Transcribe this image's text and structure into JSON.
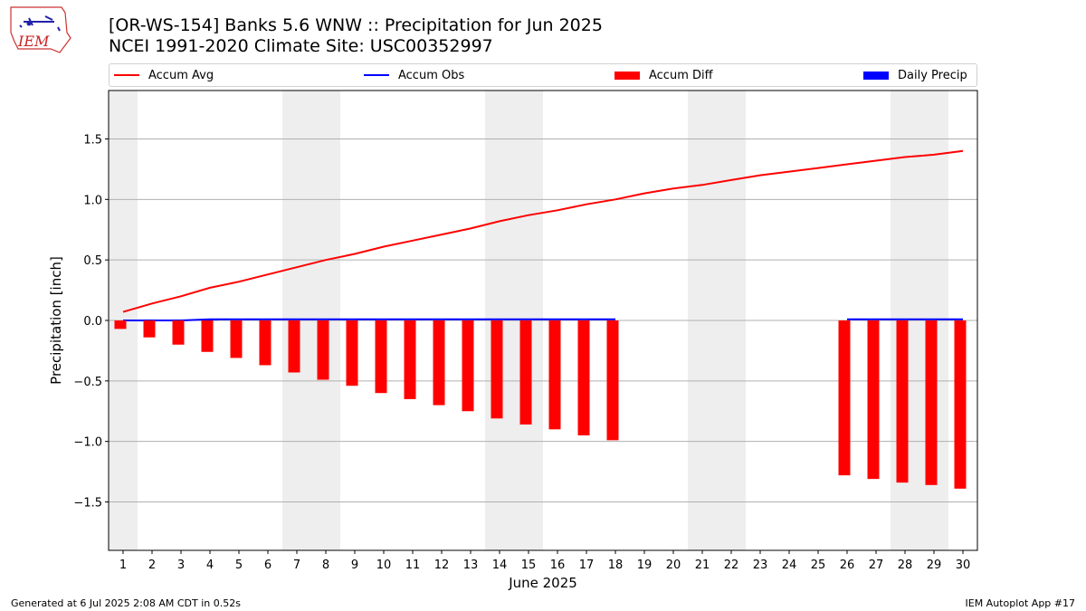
{
  "logo": {
    "text": "IEM"
  },
  "header": {
    "title": "[OR-WS-154] Banks 5.6 WNW :: Precipitation for Jun 2025",
    "subtitle": "NCEI 1991-2020 Climate Site: USC00352997"
  },
  "legend": {
    "items": [
      {
        "label": "Accum Avg",
        "kind": "line",
        "color": "#ff0000"
      },
      {
        "label": "Accum Obs",
        "kind": "line",
        "color": "#0000ff"
      },
      {
        "label": "Accum Diff",
        "kind": "patch",
        "color": "#ff0000"
      },
      {
        "label": "Daily Precip",
        "kind": "patch",
        "color": "#0000ff"
      }
    ]
  },
  "footer": {
    "left": "Generated at 6 Jul 2025 2:08 AM CDT in 0.52s",
    "right": "IEM Autoplot App #17"
  },
  "chart_data": {
    "type": "bar",
    "xlabel": "June 2025",
    "ylabel": "Precipitation [inch]",
    "xlim": [
      0.5,
      30.5
    ],
    "ylim": [
      -1.9,
      1.9
    ],
    "x_ticks": [
      1,
      2,
      3,
      4,
      5,
      6,
      7,
      8,
      9,
      10,
      11,
      12,
      13,
      14,
      15,
      16,
      17,
      18,
      19,
      20,
      21,
      22,
      23,
      24,
      25,
      26,
      27,
      28,
      29,
      30
    ],
    "y_ticks": [
      -1.5,
      -1.0,
      -0.5,
      0.0,
      0.5,
      1.0,
      1.5
    ],
    "y_tick_labels": [
      "−1.5",
      "−1.0",
      "−0.5",
      "0.0",
      "0.5",
      "1.0",
      "1.5"
    ],
    "grid": "y",
    "legend_position": "top",
    "weekend_shading": [
      [
        0.5,
        1.5
      ],
      [
        6.5,
        8.5
      ],
      [
        13.5,
        15.5
      ],
      [
        20.5,
        22.5
      ],
      [
        27.5,
        29.5
      ]
    ],
    "shading_color": "#eeeeee",
    "series": [
      {
        "name": "Accum Avg",
        "type": "line",
        "color": "#ff0000",
        "x": [
          1,
          2,
          3,
          4,
          5,
          6,
          7,
          8,
          9,
          10,
          11,
          12,
          13,
          14,
          15,
          16,
          17,
          18,
          19,
          20,
          21,
          22,
          23,
          24,
          25,
          26,
          27,
          28,
          29,
          30
        ],
        "values": [
          0.07,
          0.14,
          0.2,
          0.27,
          0.32,
          0.38,
          0.44,
          0.5,
          0.55,
          0.61,
          0.66,
          0.71,
          0.76,
          0.82,
          0.87,
          0.91,
          0.96,
          1.0,
          1.05,
          1.09,
          1.12,
          1.16,
          1.2,
          1.23,
          1.26,
          1.29,
          1.32,
          1.35,
          1.37,
          1.4
        ]
      },
      {
        "name": "Accum Obs",
        "type": "line",
        "color": "#0000ff",
        "segments": [
          {
            "x": [
              1,
              2,
              3,
              4,
              5,
              6,
              7,
              8,
              9,
              10,
              11,
              12,
              13,
              14,
              15,
              16,
              17,
              18
            ],
            "values": [
              0,
              0,
              0,
              0.01,
              0.01,
              0.01,
              0.01,
              0.01,
              0.01,
              0.01,
              0.01,
              0.01,
              0.01,
              0.01,
              0.01,
              0.01,
              0.01,
              0.01
            ]
          },
          {
            "x": [
              26,
              27,
              28,
              29,
              30
            ],
            "values": [
              0.01,
              0.01,
              0.01,
              0.01,
              0.01
            ]
          }
        ]
      },
      {
        "name": "Accum Diff",
        "type": "bar",
        "color": "#ff0000",
        "x": [
          1,
          2,
          3,
          4,
          5,
          6,
          7,
          8,
          9,
          10,
          11,
          12,
          13,
          14,
          15,
          16,
          17,
          18,
          26,
          27,
          28,
          29,
          30
        ],
        "values": [
          -0.07,
          -0.14,
          -0.2,
          -0.26,
          -0.31,
          -0.37,
          -0.43,
          -0.49,
          -0.54,
          -0.6,
          -0.65,
          -0.7,
          -0.75,
          -0.81,
          -0.86,
          -0.9,
          -0.95,
          -0.99,
          -1.28,
          -1.31,
          -1.34,
          -1.36,
          -1.39
        ]
      },
      {
        "name": "Daily Precip",
        "type": "bar",
        "color": "#0000ff",
        "x": [
          4
        ],
        "values": [
          0.01
        ]
      }
    ]
  }
}
